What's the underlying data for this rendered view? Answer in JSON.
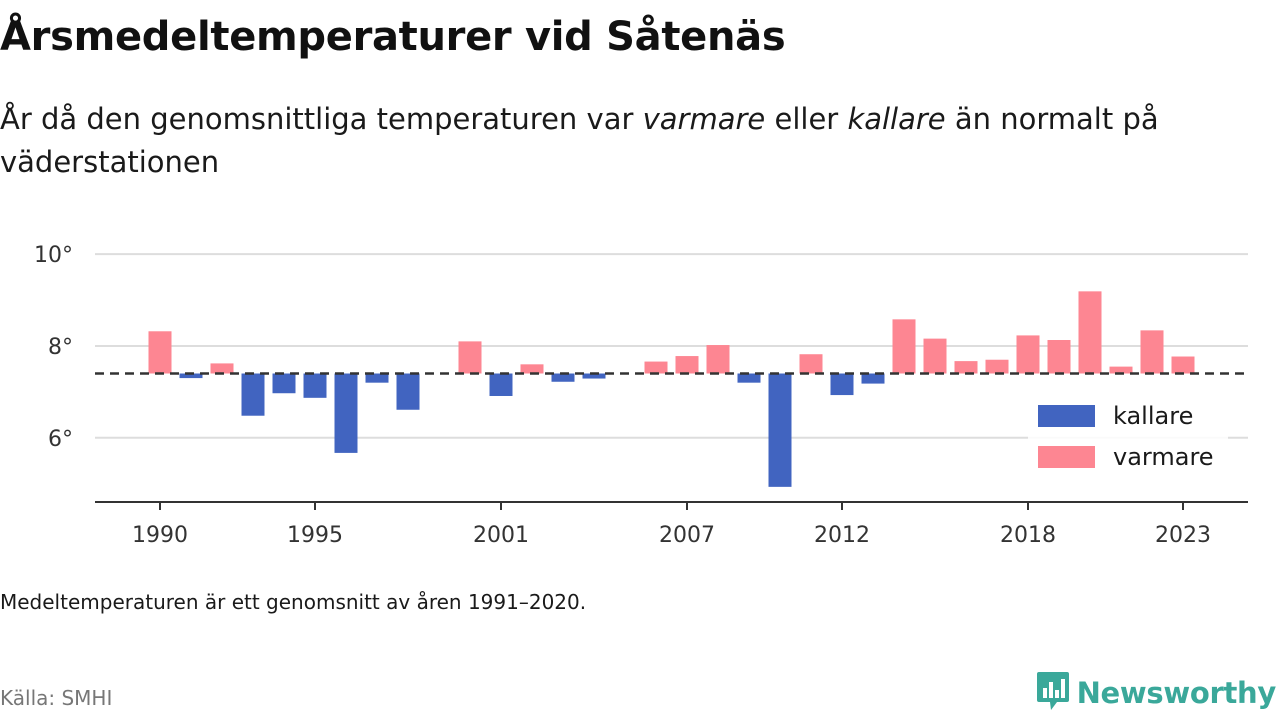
{
  "title": "Årsmedeltemperaturer vid Såtenäs",
  "subtitle": {
    "part1": "År då den genomsnittliga temperaturen var ",
    "warmer_word": "varmare",
    "part2": " eller ",
    "colder_word": "kallare",
    "part3": " än normalt på väderstationen"
  },
  "note": "Medeltemperaturen är ett genomsnitt av åren 1991–2020.",
  "source": "Källa: SMHI",
  "brand": {
    "name": "Newsworthy",
    "icon": "newsworthy-chart-bubble-icon"
  },
  "colors": {
    "colder": "#4164c0",
    "warmer": "#fd8692",
    "brand": "#3aa89a",
    "baseline": "#333333"
  },
  "chart_data": {
    "type": "bar",
    "baseline": 7.4,
    "ylim": [
      4.6,
      10.2
    ],
    "yticks": [
      6,
      8,
      10
    ],
    "ytick_labels": [
      "6°",
      "8°",
      "10°"
    ],
    "x": [
      1990,
      1991,
      1992,
      1993,
      1994,
      1995,
      1996,
      1997,
      1998,
      1999,
      2000,
      2001,
      2002,
      2003,
      2004,
      2005,
      2006,
      2007,
      2008,
      2009,
      2010,
      2011,
      2012,
      2013,
      2014,
      2015,
      2016,
      2017,
      2018,
      2019,
      2020,
      2021,
      2022,
      2023
    ],
    "values": [
      8.32,
      7.3,
      7.62,
      6.48,
      6.97,
      6.87,
      5.67,
      7.2,
      6.61,
      null,
      8.1,
      6.91,
      7.6,
      7.22,
      7.29,
      null,
      7.66,
      7.78,
      8.02,
      7.2,
      4.93,
      7.82,
      6.93,
      7.18,
      8.58,
      8.16,
      7.67,
      7.7,
      8.23,
      8.13,
      9.19,
      7.55,
      8.34,
      7.77
    ],
    "xticks": [
      1990,
      1995,
      2001,
      2007,
      2012,
      2018,
      2023
    ],
    "xtick_labels": [
      "1990",
      "1995",
      "2001",
      "2007",
      "2012",
      "2018",
      "2023"
    ],
    "legend": [
      {
        "key": "colder",
        "label": "kallare"
      },
      {
        "key": "warmer",
        "label": "varmare"
      }
    ],
    "legend_position": "right",
    "grid": true
  }
}
